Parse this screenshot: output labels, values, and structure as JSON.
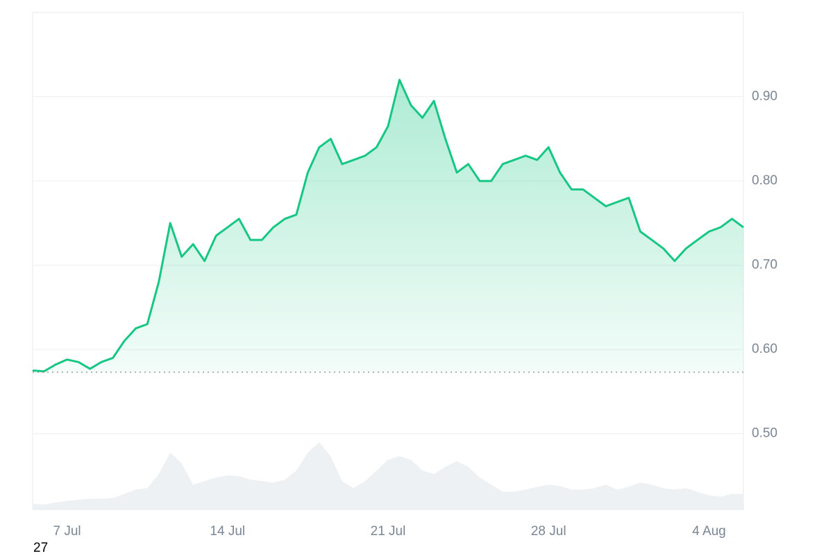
{
  "chart_data": {
    "type": "line",
    "x": [
      null,
      null,
      null,
      "7 Jul",
      null,
      null,
      null,
      null,
      null,
      null,
      null,
      null,
      null,
      null,
      null,
      null,
      null,
      "14 Jul",
      null,
      null,
      null,
      null,
      null,
      null,
      null,
      null,
      null,
      null,
      null,
      null,
      null,
      "21 Jul",
      null,
      null,
      null,
      null,
      null,
      null,
      null,
      null,
      null,
      null,
      null,
      null,
      null,
      "28 Jul",
      null,
      null,
      null,
      null,
      null,
      null,
      null,
      null,
      null,
      null,
      null,
      null,
      null,
      "4 Aug",
      null,
      null,
      null
    ],
    "series": [
      {
        "color": "#16c784",
        "values": [
          0.575,
          0.574,
          0.582,
          0.588,
          0.585,
          0.577,
          0.585,
          0.59,
          0.61,
          0.625,
          0.63,
          0.68,
          0.75,
          0.71,
          0.725,
          0.705,
          0.735,
          0.745,
          0.755,
          0.73,
          0.73,
          0.745,
          0.755,
          0.76,
          0.81,
          0.84,
          0.85,
          0.82,
          0.825,
          0.83,
          0.84,
          0.865,
          0.92,
          0.89,
          0.875,
          0.895,
          0.85,
          0.81,
          0.82,
          0.8,
          0.8,
          0.82,
          0.825,
          0.83,
          0.825,
          0.84,
          0.81,
          0.79,
          0.79,
          0.78,
          0.77,
          0.775,
          0.78,
          0.74,
          0.73,
          0.72,
          0.705,
          0.72,
          0.73,
          0.74,
          0.745,
          0.755,
          0.745
        ]
      },
      {
        "color": "#eef1f4",
        "axis": "y2",
        "values": [
          8,
          7,
          10,
          12,
          14,
          15,
          15,
          16,
          22,
          28,
          30,
          50,
          80,
          65,
          35,
          40,
          45,
          48,
          47,
          42,
          40,
          38,
          42,
          55,
          80,
          95,
          75,
          40,
          30,
          40,
          55,
          70,
          75,
          70,
          55,
          50,
          60,
          68,
          60,
          45,
          35,
          25,
          25,
          28,
          32,
          35,
          33,
          28,
          28,
          30,
          35,
          28,
          32,
          38,
          35,
          30,
          28,
          30,
          25,
          20,
          18,
          22,
          22
        ]
      }
    ],
    "down_color": "#ea3943",
    "baseline": 0.573,
    "ylim": [
      0.41,
      1.0
    ],
    "yticks": [
      {
        "value": 0.5,
        "label": "0.50"
      },
      {
        "value": 0.6,
        "label": "0.60"
      },
      {
        "value": 0.7,
        "label": "0.70"
      },
      {
        "value": 0.8,
        "label": "0.80"
      },
      {
        "value": 0.9,
        "label": "0.90"
      }
    ],
    "y2lim": [
      0,
      700
    ],
    "grid": true,
    "annotation": "27"
  }
}
